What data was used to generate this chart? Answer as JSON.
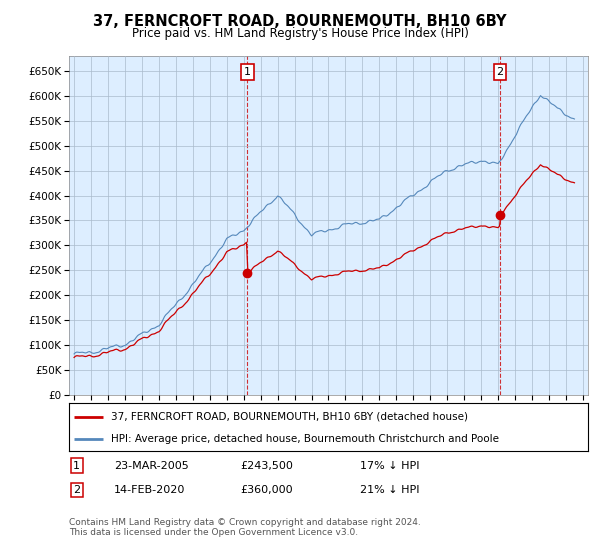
{
  "title": "37, FERNCROFT ROAD, BOURNEMOUTH, BH10 6BY",
  "subtitle": "Price paid vs. HM Land Registry's House Price Index (HPI)",
  "legend_line1": "37, FERNCROFT ROAD, BOURNEMOUTH, BH10 6BY (detached house)",
  "legend_line2": "HPI: Average price, detached house, Bournemouth Christchurch and Poole",
  "transaction1_date": "23-MAR-2005",
  "transaction1_price": "£243,500",
  "transaction1_hpi": "17% ↓ HPI",
  "transaction2_date": "14-FEB-2020",
  "transaction2_price": "£360,000",
  "transaction2_hpi": "21% ↓ HPI",
  "footer": "Contains HM Land Registry data © Crown copyright and database right 2024.\nThis data is licensed under the Open Government Licence v3.0.",
  "hpi_color": "#5588bb",
  "price_color": "#cc0000",
  "chart_bg": "#ddeeff",
  "grid_color": "#aabbcc",
  "fig_bg": "#ffffff",
  "t1_year": 2005.22,
  "t2_year": 2020.12,
  "price_t1": 243500,
  "price_t2": 360000,
  "xmin": 1994.7,
  "xmax": 2025.3,
  "ylim_bottom": 0,
  "ylim_top": 680000,
  "yticks": [
    0,
    50000,
    100000,
    150000,
    200000,
    250000,
    300000,
    350000,
    400000,
    450000,
    500000,
    550000,
    600000,
    650000
  ]
}
